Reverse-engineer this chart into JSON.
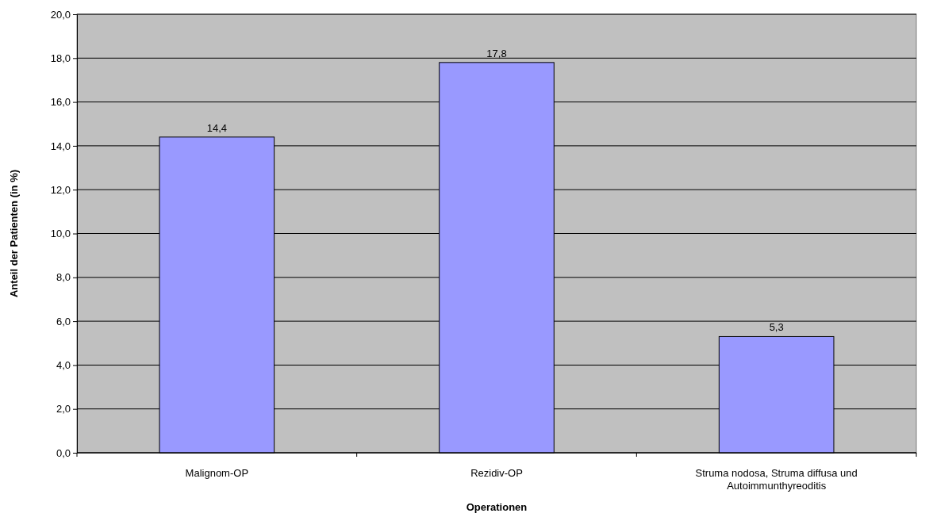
{
  "chart_data": {
    "type": "bar",
    "xlabel": "Operationen",
    "ylabel": "Anteil der Patienten (in %)",
    "categories": [
      "Malignom-OP",
      "Rezidiv-OP",
      "Struma nodosa, Struma diffusa und Autoimmunthyreoditis"
    ],
    "values": [
      14.4,
      17.8,
      5.3
    ],
    "color": "#9999ff",
    "value_labels": [
      "14,4",
      "17,8",
      "5,3"
    ],
    "ylim": [
      0,
      20
    ],
    "yticks": [
      {
        "value": 0,
        "label": "0,0"
      },
      {
        "value": 2,
        "label": "2,0"
      },
      {
        "value": 4,
        "label": "4,0"
      },
      {
        "value": 6,
        "label": "6,0"
      },
      {
        "value": 8,
        "label": "8,0"
      },
      {
        "value": 10,
        "label": "10,0"
      },
      {
        "value": 12,
        "label": "12,0"
      },
      {
        "value": 14,
        "label": "14,0"
      },
      {
        "value": 16,
        "label": "16,0"
      },
      {
        "value": 18,
        "label": "18,0"
      },
      {
        "value": 20,
        "label": "20,0"
      }
    ],
    "grid": "y"
  }
}
